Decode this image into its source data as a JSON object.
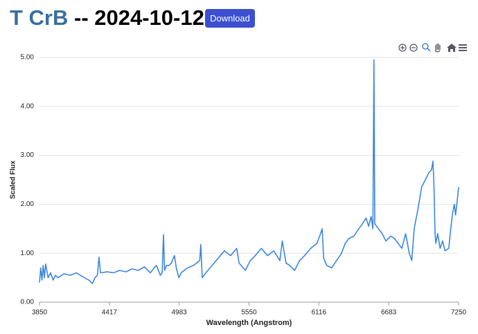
{
  "header": {
    "object": "T CrB",
    "date_text": "-- 2024-10-12",
    "button": "Download"
  },
  "chart_data": {
    "type": "line",
    "xlabel": "Wavelength (Angstrom)",
    "ylabel": "Scaled Flux",
    "color": "#3a86e0",
    "grid": true,
    "xlim": [
      3850,
      7250
    ],
    "xticks": [
      3850,
      4417,
      4983,
      5550,
      6116,
      6683,
      7250
    ],
    "ylim": [
      0,
      5
    ],
    "yticks": [
      {
        "value": 0,
        "label": "0.00"
      },
      {
        "value": 1,
        "label": "1.00"
      },
      {
        "value": 2,
        "label": "2.00"
      },
      {
        "value": 3,
        "label": "3.00"
      },
      {
        "value": 4,
        "label": "4.00"
      },
      {
        "value": 5,
        "label": "5.00"
      }
    ],
    "x": [
      3850,
      3860,
      3870,
      3880,
      3890,
      3900,
      3920,
      3940,
      3960,
      3980,
      4000,
      4050,
      4100,
      4150,
      4200,
      4250,
      4280,
      4300,
      4320,
      4333,
      4345,
      4400,
      4450,
      4500,
      4550,
      4600,
      4650,
      4700,
      4750,
      4780,
      4800,
      4830,
      4845,
      4856,
      4865,
      4880,
      4900,
      4920,
      4945,
      4960,
      4980,
      5000,
      5050,
      5100,
      5150,
      5159,
      5170,
      5200,
      5250,
      5300,
      5350,
      5400,
      5450,
      5469,
      5520,
      5560,
      5600,
      5650,
      5700,
      5750,
      5800,
      5820,
      5850,
      5880,
      5920,
      5960,
      6000,
      6050,
      6100,
      6130,
      6143,
      6155,
      6180,
      6220,
      6260,
      6300,
      6330,
      6360,
      6400,
      6440,
      6470,
      6500,
      6520,
      6540,
      6555,
      6563,
      6570,
      6600,
      6630,
      6660,
      6700,
      6730,
      6760,
      6790,
      6820,
      6850,
      6870,
      6890,
      6920,
      6950,
      6980,
      7010,
      7030,
      7042,
      7050,
      7059,
      7065,
      7080,
      7100,
      7120,
      7140,
      7170,
      7180,
      7200,
      7215,
      7225,
      7240,
      7250
    ],
    "values": [
      0.4,
      0.7,
      0.45,
      0.75,
      0.5,
      0.78,
      0.5,
      0.6,
      0.45,
      0.55,
      0.5,
      0.58,
      0.55,
      0.6,
      0.52,
      0.45,
      0.38,
      0.5,
      0.55,
      0.92,
      0.6,
      0.62,
      0.6,
      0.65,
      0.62,
      0.68,
      0.65,
      0.72,
      0.6,
      0.7,
      0.75,
      0.55,
      0.6,
      1.38,
      0.65,
      0.75,
      0.75,
      0.8,
      0.95,
      0.7,
      0.5,
      0.6,
      0.7,
      0.75,
      0.85,
      1.18,
      0.5,
      0.6,
      0.75,
      0.9,
      1.05,
      0.95,
      1.1,
      0.8,
      0.65,
      0.85,
      0.95,
      1.1,
      0.95,
      1.05,
      0.85,
      1.25,
      0.8,
      0.75,
      0.65,
      0.85,
      0.95,
      1.1,
      1.2,
      1.4,
      1.5,
      0.9,
      0.75,
      0.7,
      0.85,
      1.0,
      1.2,
      1.3,
      1.35,
      1.5,
      1.6,
      1.72,
      1.55,
      1.75,
      1.5,
      4.95,
      1.6,
      1.5,
      1.4,
      1.25,
      1.35,
      1.3,
      1.2,
      1.1,
      1.4,
      1.0,
      0.85,
      1.5,
      1.9,
      2.35,
      2.5,
      2.65,
      2.7,
      2.88,
      2.4,
      1.4,
      1.2,
      1.4,
      1.1,
      1.25,
      1.05,
      1.1,
      1.35,
      1.8,
      2.0,
      1.78,
      2.1,
      2.35
    ]
  }
}
